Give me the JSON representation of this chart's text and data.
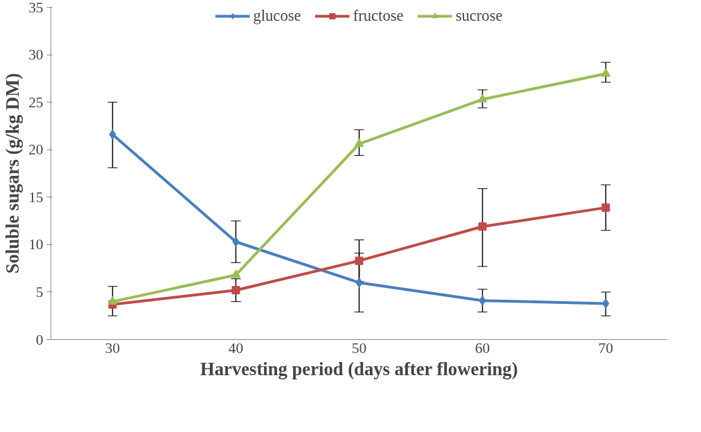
{
  "chart_data": {
    "type": "line",
    "xlabel": "Harvesting period (days after flowering)",
    "ylabel": "Soluble sugars (g/kg DM)",
    "categories": [
      "30",
      "40",
      "50",
      "60",
      "70"
    ],
    "series": [
      {
        "name": "glucose",
        "color": "#4a7ebb",
        "marker": "diamond",
        "values": [
          21.6,
          10.3,
          6.0,
          4.1,
          3.8
        ],
        "errors": [
          [
            18.1,
            25.0
          ],
          [
            8.1,
            12.5
          ],
          [
            2.9,
            9.1
          ],
          [
            2.9,
            5.3
          ],
          [
            2.5,
            5.0
          ]
        ]
      },
      {
        "name": "fructose",
        "color": "#be4b48",
        "marker": "square",
        "values": [
          3.7,
          5.2,
          8.3,
          11.9,
          13.9
        ],
        "errors": [
          null,
          [
            4.0,
            6.4
          ],
          [
            6.1,
            10.5
          ],
          [
            7.7,
            15.9
          ],
          [
            11.5,
            16.3
          ]
        ]
      },
      {
        "name": "sucrose",
        "color": "#9bbb59",
        "marker": "triangle",
        "values": [
          4.0,
          6.8,
          20.6,
          25.3,
          28.0
        ],
        "errors": [
          [
            2.5,
            5.6
          ],
          null,
          [
            19.4,
            22.1
          ],
          [
            24.4,
            26.3
          ],
          [
            27.1,
            29.2
          ]
        ]
      }
    ],
    "ylim": [
      0,
      35
    ],
    "yticks": [
      0,
      5,
      10,
      15,
      20,
      25,
      30,
      35
    ],
    "grid": false,
    "legend": "top",
    "line_style": "solid"
  }
}
